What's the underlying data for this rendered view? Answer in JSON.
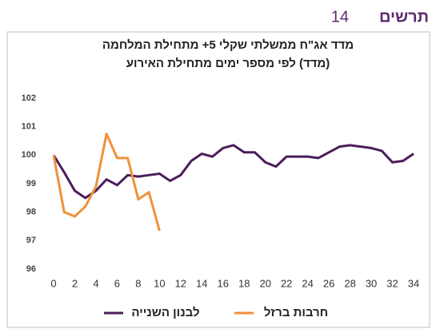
{
  "header": {
    "label": "תרשים",
    "number": "14"
  },
  "chart_data": {
    "type": "line",
    "title": "מדד אג\"ח ממשלתי שקלי 5+ מתחילת המלחמה",
    "subtitle": "(מדד) לפי מספר ימים מתחילת האירוע",
    "x": [
      0,
      1,
      2,
      3,
      4,
      5,
      6,
      7,
      8,
      9,
      10,
      11,
      12,
      13,
      14,
      15,
      16,
      17,
      18,
      19,
      20,
      21,
      22,
      23,
      24,
      25,
      26,
      27,
      28,
      29,
      30,
      31,
      32,
      33,
      34
    ],
    "series": [
      {
        "name": "לבנון השנייה",
        "color": "#4b1e5c",
        "values": [
          100,
          99.4,
          98.75,
          98.5,
          98.75,
          99.15,
          98.95,
          99.3,
          99.25,
          99.3,
          99.35,
          99.1,
          99.3,
          99.8,
          100.05,
          99.95,
          100.25,
          100.35,
          100.1,
          100.1,
          99.75,
          99.6,
          99.95,
          99.95,
          99.95,
          99.9,
          100.1,
          100.3,
          100.35,
          100.3,
          100.25,
          100.15,
          99.75,
          99.8,
          100.05
        ]
      },
      {
        "name": "חרבות ברזל",
        "color": "#f0913a",
        "values": [
          100,
          98.0,
          97.85,
          98.2,
          98.9,
          100.75,
          99.9,
          99.9,
          98.45,
          98.7,
          97.35,
          null,
          null,
          null,
          null,
          null,
          null,
          null,
          null,
          null,
          null,
          null,
          null,
          null,
          null,
          null,
          null,
          null,
          null,
          null,
          null,
          null,
          null,
          null,
          null
        ]
      }
    ],
    "xlim": [
      0,
      34
    ],
    "xticks": [
      0,
      2,
      4,
      6,
      8,
      10,
      12,
      14,
      16,
      18,
      20,
      22,
      24,
      26,
      28,
      30,
      32,
      34
    ],
    "ylim": [
      96,
      102
    ],
    "yticks": [
      96,
      97,
      98,
      99,
      100,
      101,
      102
    ],
    "grid": false
  }
}
